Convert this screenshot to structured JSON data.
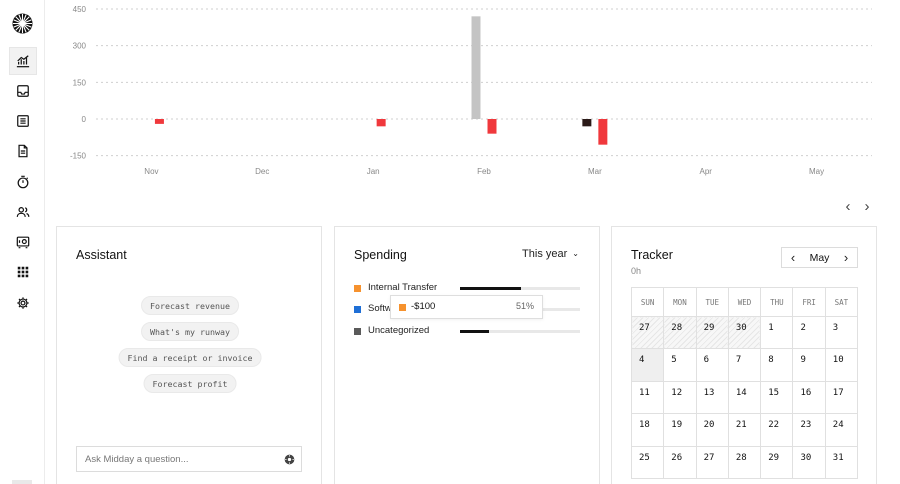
{
  "sidebar": {
    "items": [
      {
        "name": "overview",
        "icon": "chart-icon",
        "active": true
      },
      {
        "name": "inbox",
        "icon": "inbox-icon",
        "active": false
      },
      {
        "name": "transactions",
        "icon": "list-icon",
        "active": false
      },
      {
        "name": "invoices",
        "icon": "document-icon",
        "active": false
      },
      {
        "name": "tracker",
        "icon": "timer-icon",
        "active": false
      },
      {
        "name": "customers",
        "icon": "users-icon",
        "active": false
      },
      {
        "name": "vault",
        "icon": "vault-icon",
        "active": false
      },
      {
        "name": "apps",
        "icon": "grid-icon",
        "active": false
      },
      {
        "name": "settings",
        "icon": "gear-icon",
        "active": false
      }
    ]
  },
  "chart_data": {
    "type": "bar",
    "categories": [
      "Nov",
      "Dec",
      "Jan",
      "Feb",
      "Mar",
      "Apr",
      "May"
    ],
    "yticks": [
      450,
      300,
      150,
      0,
      -150
    ],
    "ylim": [
      -160,
      460
    ],
    "grid": true,
    "series": [
      {
        "values": [
          0,
          0,
          0,
          420,
          0,
          0,
          0
        ],
        "color": "#c4c4c4"
      },
      {
        "values": [
          -20,
          0,
          -30,
          -60,
          -105,
          0,
          0
        ],
        "color": "#f0383c"
      },
      {
        "values": [
          0,
          0,
          0,
          0,
          -30,
          0,
          0
        ],
        "color": "#2b1a18"
      }
    ]
  },
  "assistant": {
    "title": "Assistant",
    "suggestions": [
      "Forecast revenue",
      "What's my runway",
      "Find a receipt or invoice",
      "Forecast profit"
    ],
    "input_placeholder": "Ask Midday a question..."
  },
  "spending": {
    "title": "Spending",
    "period": "This year",
    "categories": [
      {
        "label": "Internal Transfer",
        "color": "#f6922e",
        "share": 0.51
      },
      {
        "label": "Software",
        "color": "#1f6fd6",
        "share": 0.4
      },
      {
        "label": "Uncategorized",
        "color": "#5a5a5a",
        "share": 0.24
      }
    ],
    "tooltip": {
      "amount": "-$100",
      "percent": "51%",
      "color": "#f6922e"
    }
  },
  "tracker": {
    "title": "Tracker",
    "total": "0h",
    "month": "May",
    "weekdays": [
      "SUN",
      "MON",
      "TUE",
      "WED",
      "THU",
      "FRI",
      "SAT"
    ],
    "weeks": [
      [
        "27",
        "28",
        "29",
        "30",
        "1",
        "2",
        "3"
      ],
      [
        "4",
        "5",
        "6",
        "7",
        "8",
        "9",
        "10"
      ],
      [
        "11",
        "12",
        "13",
        "14",
        "15",
        "16",
        "17"
      ],
      [
        "18",
        "19",
        "20",
        "21",
        "22",
        "23",
        "24"
      ],
      [
        "25",
        "26",
        "27",
        "28",
        "29",
        "30",
        "31"
      ]
    ],
    "outside_days": [
      [
        0,
        0
      ],
      [
        0,
        1
      ],
      [
        0,
        2
      ],
      [
        0,
        3
      ]
    ],
    "today": [
      1,
      0
    ]
  }
}
